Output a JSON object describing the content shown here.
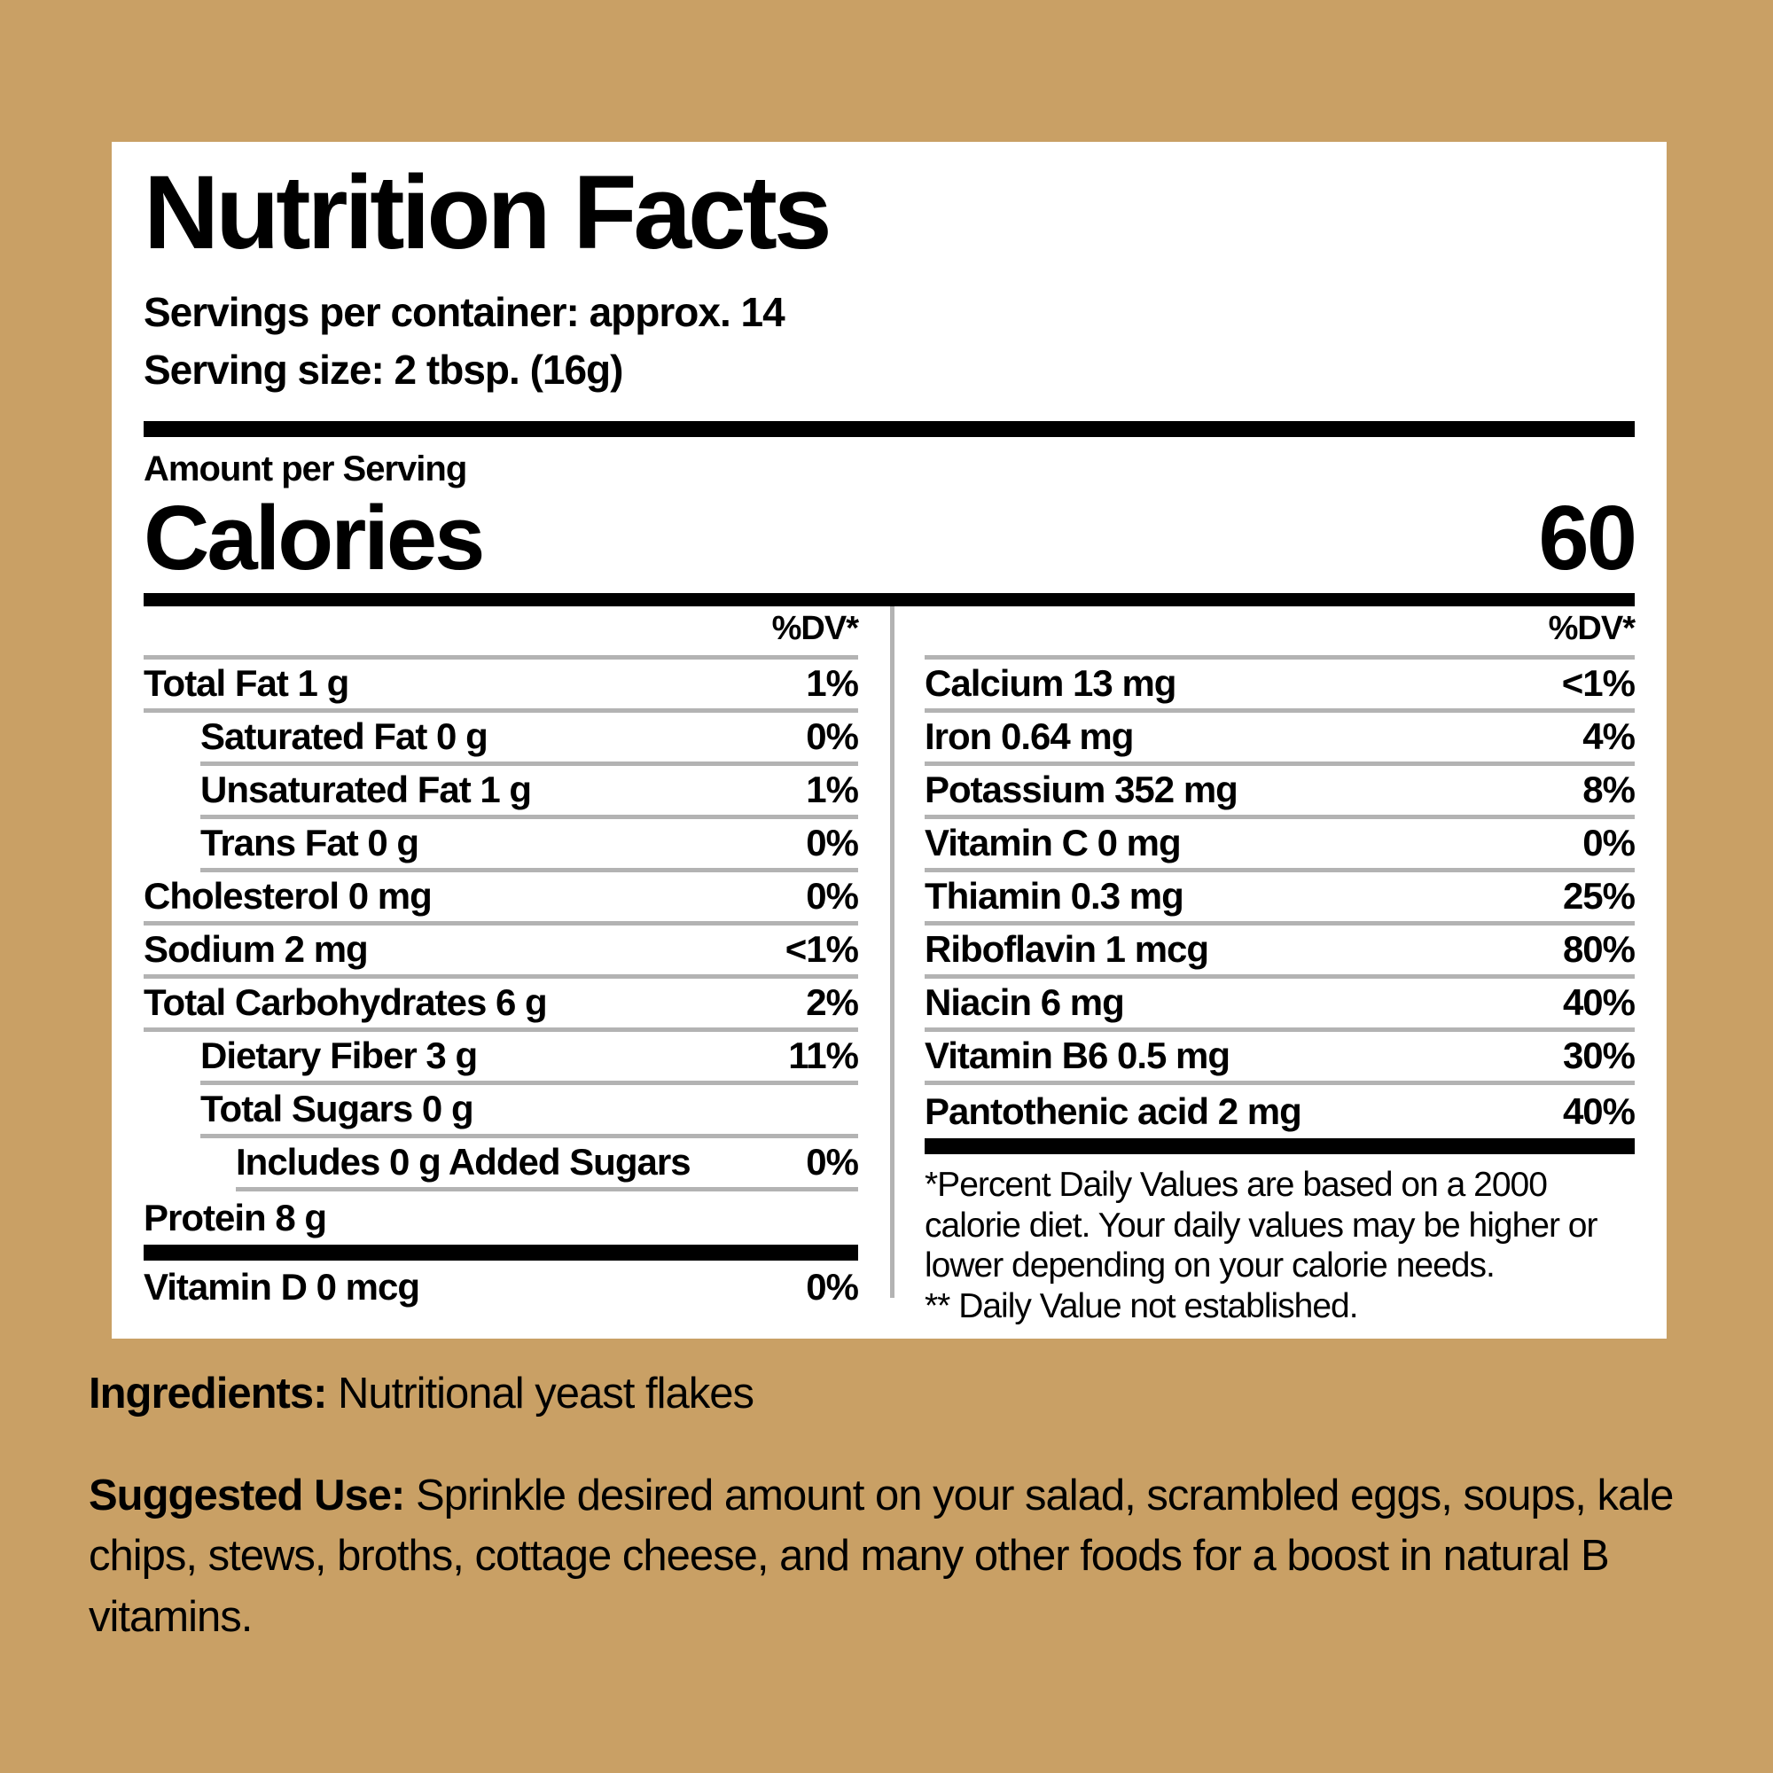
{
  "label": {
    "title": "Nutrition Facts",
    "servings_per_container": "Servings per container: approx. 14",
    "serving_size": "Serving size: 2 tbsp. (16g)",
    "amount_per_serving": "Amount per Serving",
    "calories_label": "Calories",
    "calories_value": "60",
    "dv_header": "%DV*",
    "left_rows": [
      {
        "label": "Total Fat 1 g",
        "value": "1%"
      },
      {
        "label": "Saturated Fat 0 g",
        "value": "0%"
      },
      {
        "label": "Unsaturated Fat 1 g",
        "value": "1%"
      },
      {
        "label": "Trans Fat 0 g",
        "value": "0%"
      },
      {
        "label": "Cholesterol 0 mg",
        "value": "0%"
      },
      {
        "label": "Sodium 2 mg",
        "value": "<1%"
      },
      {
        "label": "Total Carbohydrates 6 g",
        "value": "2%"
      },
      {
        "label": "Dietary Fiber 3 g",
        "value": "11%"
      },
      {
        "label": "Total Sugars 0 g",
        "value": ""
      },
      {
        "label": "Includes 0 g Added Sugars",
        "value": "0%"
      },
      {
        "label": "Protein 8 g",
        "value": ""
      }
    ],
    "vitamin_d_row": {
      "label": "Vitamin D 0 mcg",
      "value": "0%"
    },
    "right_rows": [
      {
        "label": "Calcium 13 mg",
        "value": "<1%"
      },
      {
        "label": "Iron 0.64 mg",
        "value": "4%"
      },
      {
        "label": "Potassium 352 mg",
        "value": "8%"
      },
      {
        "label": "Vitamin C 0 mg",
        "value": "0%"
      },
      {
        "label": "Thiamin 0.3 mg",
        "value": "25%"
      },
      {
        "label": "Riboflavin 1 mcg",
        "value": "80%"
      },
      {
        "label": "Niacin 6 mg",
        "value": "40%"
      },
      {
        "label": "Vitamin B6 0.5 mg",
        "value": "30%"
      },
      {
        "label": "Pantothenic acid 2 mg",
        "value": "40%"
      }
    ],
    "footnote_line1": "*Percent Daily Values are based on a 2000 calorie diet. Your daily values may be higher or lower depending on your calorie needs.",
    "footnote_line2": "** Daily Value not established."
  },
  "bottom": {
    "ingredients_label": "Ingredients:",
    "ingredients_text": "Nutritional yeast flakes",
    "suggested_use_label": "Suggested Use:",
    "suggested_use_text": "Sprinkle desired amount on your salad, scrambled eggs, soups, kale chips, stews, broths, cottage cheese, and many other foods for a boost in natural B vitamins."
  },
  "colors": {
    "background": "#c9a065",
    "panel": "#ffffff",
    "text": "#000000",
    "separator": "#b3b3b3"
  }
}
